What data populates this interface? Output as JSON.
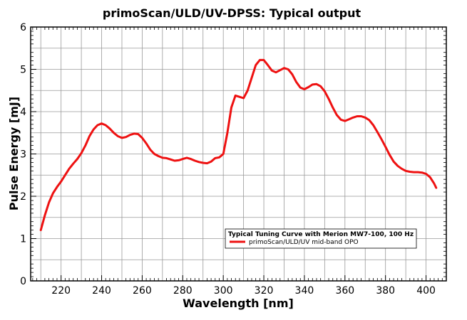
{
  "chart_data": {
    "type": "line",
    "title": "primoScan/ULD/UV-DPSS: Typical output",
    "xlabel": "Wavelength [nm]",
    "ylabel": "Pulse Energy [mJ]",
    "xlim": [
      205,
      410
    ],
    "ylim": [
      0,
      6
    ],
    "xticks": [
      220,
      240,
      260,
      280,
      300,
      320,
      340,
      360,
      380,
      400
    ],
    "yticks": [
      0,
      1,
      2,
      3,
      4,
      5,
      6
    ],
    "grid": true,
    "legend_position": "lower-right",
    "legend_title": "Typical Tuning Curve with Merion MW7-100, 100 Hz",
    "series": [
      {
        "name": "primoScan/ULD/UV mid-band OPO",
        "color": "#ee1111",
        "x": [
          210,
          212,
          214,
          216,
          218,
          220,
          222,
          224,
          226,
          228,
          230,
          232,
          234,
          236,
          238,
          240,
          242,
          244,
          246,
          248,
          250,
          252,
          254,
          256,
          258,
          260,
          262,
          264,
          266,
          268,
          270,
          272,
          274,
          276,
          278,
          280,
          282,
          284,
          286,
          288,
          290,
          292,
          294,
          296,
          298,
          300,
          302,
          304,
          306,
          308,
          310,
          312,
          314,
          316,
          318,
          320,
          322,
          324,
          326,
          328,
          330,
          332,
          334,
          336,
          338,
          340,
          342,
          344,
          346,
          348,
          350,
          352,
          354,
          356,
          358,
          360,
          362,
          364,
          366,
          368,
          370,
          372,
          374,
          376,
          378,
          380,
          382,
          384,
          386,
          388,
          390,
          392,
          394,
          396,
          398,
          400,
          402,
          404,
          405
        ],
        "y": [
          1.2,
          1.55,
          1.85,
          2.07,
          2.22,
          2.35,
          2.5,
          2.65,
          2.77,
          2.88,
          3.02,
          3.2,
          3.42,
          3.58,
          3.68,
          3.72,
          3.68,
          3.6,
          3.5,
          3.42,
          3.38,
          3.4,
          3.45,
          3.48,
          3.47,
          3.38,
          3.25,
          3.1,
          3.0,
          2.95,
          2.91,
          2.9,
          2.87,
          2.84,
          2.85,
          2.88,
          2.91,
          2.88,
          2.84,
          2.81,
          2.79,
          2.78,
          2.82,
          2.9,
          2.92,
          3.0,
          3.5,
          4.1,
          4.38,
          4.35,
          4.32,
          4.5,
          4.8,
          5.1,
          5.22,
          5.22,
          5.1,
          4.97,
          4.93,
          4.98,
          5.03,
          5.0,
          4.88,
          4.7,
          4.57,
          4.53,
          4.58,
          4.64,
          4.65,
          4.6,
          4.48,
          4.3,
          4.1,
          3.92,
          3.81,
          3.78,
          3.82,
          3.86,
          3.89,
          3.89,
          3.86,
          3.8,
          3.68,
          3.52,
          3.35,
          3.17,
          2.98,
          2.82,
          2.72,
          2.65,
          2.6,
          2.58,
          2.57,
          2.57,
          2.56,
          2.53,
          2.45,
          2.3,
          2.2
        ]
      }
    ]
  }
}
